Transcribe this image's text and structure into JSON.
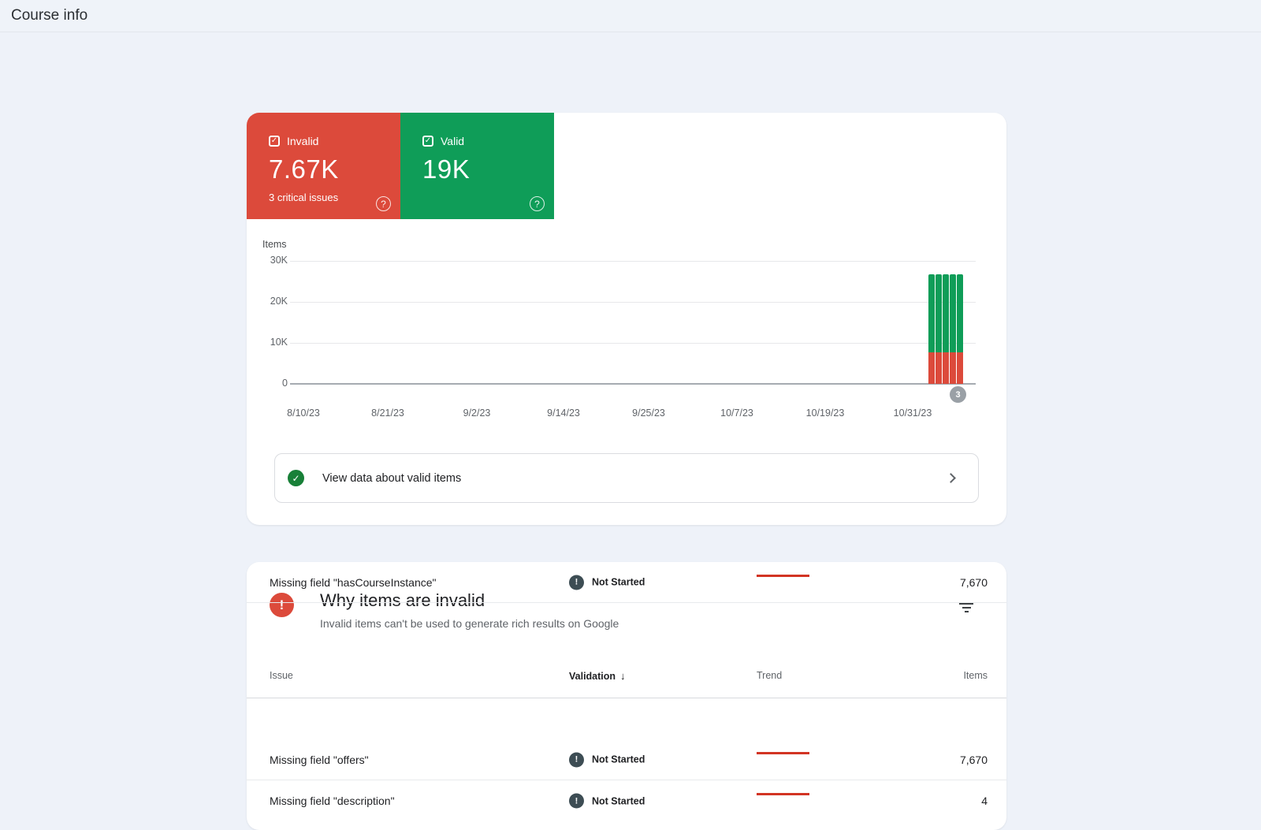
{
  "page": {
    "title": "Course info"
  },
  "icons": {
    "check": "✓",
    "help": "?",
    "exclamation": "!",
    "sort_down": "↓"
  },
  "summary_cards": {
    "invalid": {
      "label": "Invalid",
      "value": "7.67K",
      "subtext": "3 critical issues",
      "color": "#dc4a3b"
    },
    "valid": {
      "label": "Valid",
      "value": "19K",
      "color": "#0f9d58"
    }
  },
  "chart_data": {
    "type": "bar",
    "stacked": true,
    "ylabel": "Items",
    "y_ticks": [
      "30K",
      "20K",
      "10K",
      "0"
    ],
    "ylim": [
      0,
      30000
    ],
    "grid": true,
    "legend_position": "none",
    "x_tick_labels": [
      "8/10/23",
      "8/21/23",
      "9/2/23",
      "9/14/23",
      "9/25/23",
      "10/7/23",
      "10/19/23",
      "10/31/23"
    ],
    "series": [
      {
        "name": "Valid",
        "color": "#0f9d58",
        "values": [
          19000,
          19000,
          19000,
          19000,
          19000
        ]
      },
      {
        "name": "Invalid",
        "color": "#dc4a3b",
        "values": [
          7670,
          7670,
          7670,
          7670,
          7670
        ]
      }
    ],
    "annotation_badge": "3"
  },
  "view_data_row": {
    "label": "View data about valid items"
  },
  "invalid_card": {
    "title": "Why items are invalid",
    "subtitle": "Invalid items can't be used to generate rich results on Google",
    "table": {
      "headers": {
        "issue": "Issue",
        "validation": "Validation",
        "trend": "Trend",
        "items": "Items"
      },
      "sort": {
        "column": "Validation",
        "direction": "desc"
      },
      "rows": [
        {
          "issue": "Missing field \"hasCourseInstance\"",
          "validation": "Not Started",
          "items": "7,670"
        },
        {
          "issue": "Missing field \"offers\"",
          "validation": "Not Started",
          "items": "7,670"
        },
        {
          "issue": "Missing field \"description\"",
          "validation": "Not Started",
          "items": "4"
        }
      ]
    }
  }
}
